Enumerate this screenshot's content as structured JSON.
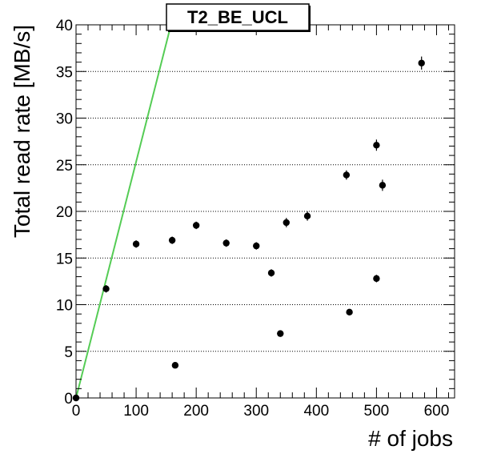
{
  "chart_data": {
    "type": "scatter",
    "title": "T2_BE_UCL",
    "xlabel": "# of jobs",
    "ylabel": "Total read rate [MB/s]",
    "xlim": [
      0,
      630
    ],
    "ylim": [
      0,
      40
    ],
    "x_ticks": [
      0,
      100,
      200,
      300,
      400,
      500,
      600
    ],
    "y_ticks": [
      0,
      5,
      10,
      15,
      20,
      25,
      30,
      35,
      40
    ],
    "grid": {
      "x": false,
      "y": true,
      "style": "dotted"
    },
    "series": [
      {
        "marker_color": "#000000",
        "points": [
          {
            "x": 0,
            "y": 0,
            "err": 0.3
          },
          {
            "x": 50,
            "y": 11.7,
            "err": 0.4
          },
          {
            "x": 100,
            "y": 16.5,
            "err": 0.4
          },
          {
            "x": 160,
            "y": 16.9,
            "err": 0.4
          },
          {
            "x": 165,
            "y": 3.5,
            "err": 0.3
          },
          {
            "x": 200,
            "y": 18.5,
            "err": 0.4
          },
          {
            "x": 250,
            "y": 16.6,
            "err": 0.4
          },
          {
            "x": 300,
            "y": 16.3,
            "err": 0.4
          },
          {
            "x": 325,
            "y": 13.4,
            "err": 0.4
          },
          {
            "x": 340,
            "y": 6.9,
            "err": 0.3
          },
          {
            "x": 350,
            "y": 18.8,
            "err": 0.5
          },
          {
            "x": 385,
            "y": 19.5,
            "err": 0.5
          },
          {
            "x": 450,
            "y": 23.9,
            "err": 0.5
          },
          {
            "x": 455,
            "y": 9.2,
            "err": 0.3
          },
          {
            "x": 500,
            "y": 27.1,
            "err": 0.6
          },
          {
            "x": 500,
            "y": 12.8,
            "err": 0.4
          },
          {
            "x": 510,
            "y": 22.8,
            "err": 0.6
          },
          {
            "x": 575,
            "y": 35.9,
            "err": 0.7
          }
        ]
      }
    ],
    "reference_line": {
      "color": "#55cc55",
      "x": [
        0,
        158
      ],
      "y": [
        0,
        40
      ]
    }
  }
}
